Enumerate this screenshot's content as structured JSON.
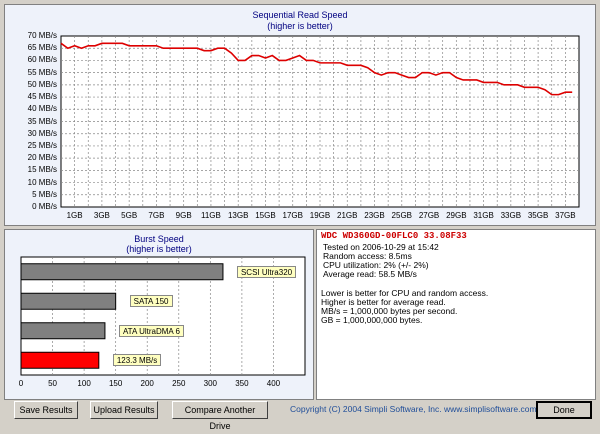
{
  "sequential": {
    "title": "Sequential Read Speed",
    "subtitle": "(higher is better)",
    "y_labels": [
      "70 MB/s",
      "65 MB/s",
      "60 MB/s",
      "55 MB/s",
      "50 MB/s",
      "45 MB/s",
      "40 MB/s",
      "35 MB/s",
      "30 MB/s",
      "25 MB/s",
      "20 MB/s",
      "15 MB/s",
      "10 MB/s",
      "5 MB/s",
      "0 MB/s"
    ],
    "x_labels": [
      "1GB",
      "3GB",
      "5GB",
      "7GB",
      "9GB",
      "11GB",
      "13GB",
      "15GB",
      "17GB",
      "19GB",
      "21GB",
      "23GB",
      "25GB",
      "27GB",
      "29GB",
      "31GB",
      "33GB",
      "35GB",
      "37GB"
    ],
    "line_color": "#dd0000"
  },
  "burst": {
    "title": "Burst Speed",
    "subtitle": "(higher is better)",
    "x_labels": [
      "0",
      "50",
      "100",
      "150",
      "200",
      "250",
      "300",
      "350",
      "400"
    ]
  },
  "chart_data": [
    {
      "type": "line",
      "title": "Sequential Read Speed",
      "subtitle": "(higher is better)",
      "xlabel": "",
      "ylabel": "",
      "xlim": [
        0,
        38
      ],
      "ylim": [
        0,
        70
      ],
      "grid": true,
      "x": [
        0,
        0.5,
        1,
        1.5,
        2,
        2.5,
        3,
        3.5,
        4,
        4.5,
        5,
        5.5,
        6,
        6.5,
        7,
        7.5,
        8,
        8.5,
        9,
        9.5,
        10,
        10.5,
        11,
        11.5,
        12,
        12.5,
        13,
        13.5,
        14,
        14.5,
        15,
        15.5,
        16,
        16.5,
        17,
        17.5,
        18,
        18.5,
        19,
        19.5,
        20,
        20.5,
        21,
        21.5,
        22,
        22.5,
        23,
        23.5,
        24,
        24.5,
        25,
        25.5,
        26,
        26.5,
        27,
        27.5,
        28,
        28.5,
        29,
        29.5,
        30,
        30.5,
        31,
        31.5,
        32,
        32.5,
        33,
        33.5,
        34,
        34.5,
        35,
        35.5,
        36,
        36.5,
        37,
        37.5
      ],
      "series": [
        {
          "name": "",
          "values": [
            67,
            65,
            66,
            65,
            66,
            66,
            67,
            67,
            67,
            67,
            66,
            66,
            66,
            66,
            66,
            65,
            65,
            65,
            65,
            65,
            65,
            64,
            64,
            65,
            65,
            63,
            60,
            60,
            62,
            62,
            61,
            62,
            60,
            60,
            61,
            62,
            60,
            60,
            59,
            59,
            59,
            59,
            58,
            58,
            58,
            57,
            55,
            54,
            55,
            55,
            54,
            53,
            53,
            55,
            55,
            54,
            55,
            55,
            53,
            52,
            52,
            52,
            51,
            51,
            51,
            50,
            50,
            50,
            49,
            49,
            49,
            48,
            46,
            46,
            47,
            47
          ]
        }
      ]
    },
    {
      "type": "bar",
      "title": "Burst Speed",
      "subtitle": "(higher is better)",
      "orientation": "horizontal",
      "xlim": [
        0,
        450
      ],
      "grid": true,
      "categories": [
        "SCSI Ultra320",
        "SATA 150",
        "ATA UltraDMA 6",
        "123.3 MB/s"
      ],
      "values": [
        320,
        150,
        133,
        123.3
      ],
      "colors": [
        "#808080",
        "#808080",
        "#808080",
        "#ff0000"
      ]
    }
  ],
  "drive_info": {
    "model": "WDC WD360GD-00FLC0 33.08F33",
    "tested": "Tested on 2006-10-29 at 15:42",
    "random_access": "Random access: 8.5ms",
    "cpu": "CPU utilization: 2% (+/- 2%)",
    "average_read": "Average read: 58.5 MB/s",
    "note1": "Lower is better for CPU and random access.",
    "note2": "Higher is better for average read.",
    "note3": "MB/s = 1,000,000 bytes per second.",
    "note4": "GB = 1,000,000,000 bytes."
  },
  "buttons": {
    "save": "Save Results",
    "upload": "Upload Results",
    "compare": "Compare Another Drive",
    "done": "Done"
  },
  "copyright": "Copyright (C) 2004 Simpli Software, Inc. www.simplisoftware.com"
}
